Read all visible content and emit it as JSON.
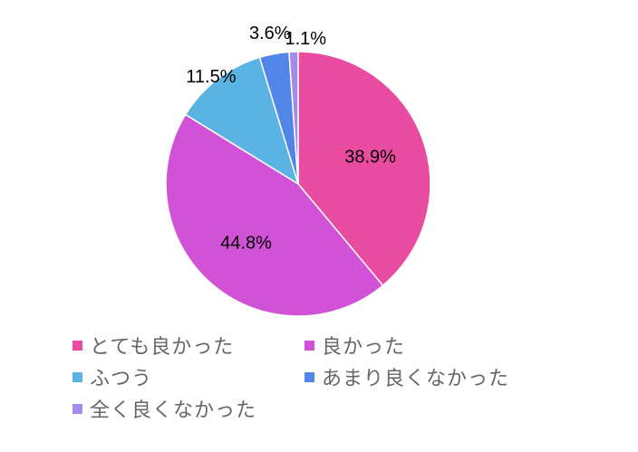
{
  "chart_data": {
    "type": "pie",
    "slices": [
      {
        "label": "とても良かった",
        "value": 38.9,
        "display": "38.9%",
        "color": "#E84BA0"
      },
      {
        "label": "良かった",
        "value": 44.8,
        "display": "44.8%",
        "color": "#D152D6"
      },
      {
        "label": "ふつう",
        "value": 11.5,
        "display": "11.5%",
        "color": "#5BB3E4"
      },
      {
        "label": "あまり良くなかった",
        "value": 3.6,
        "display": "3.6%",
        "color": "#5185E7"
      },
      {
        "label": "全く良くなかった",
        "value": 1.1,
        "display": "1.1%",
        "color": "#A58BE9"
      }
    ],
    "start_angle": "top",
    "direction": "clockwise",
    "legend_position": "bottom",
    "slice_border_color": "#ffffff"
  }
}
